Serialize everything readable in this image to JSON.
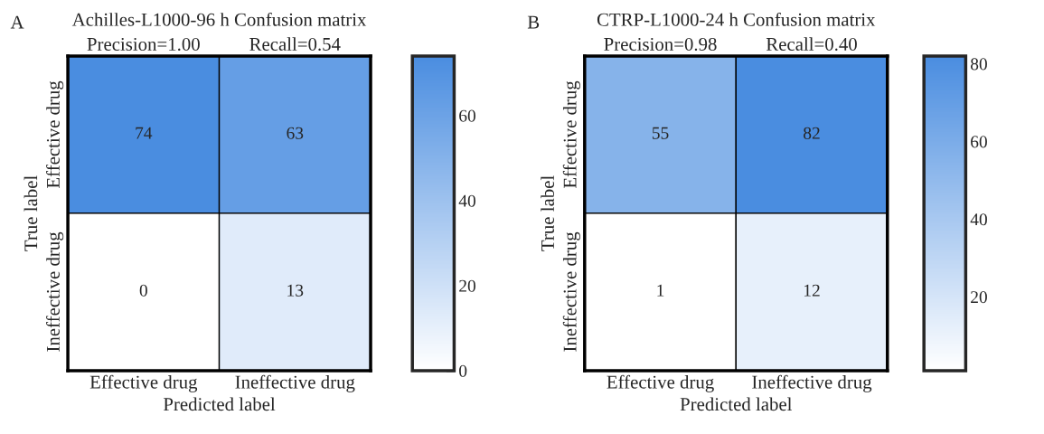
{
  "chart_data": [
    {
      "type": "heatmap",
      "title": "Achilles-L1000-96 h Confusion matrix",
      "xlabel": "Predicted label",
      "ylabel": "True label",
      "annotations": [
        "A",
        "Precision=1.00",
        "Recall=0.54"
      ],
      "categories": [
        "Effective drug",
        "Ineffective drug"
      ],
      "y_categories": [
        "Effective drug",
        "Ineffective drug"
      ],
      "cells": [
        [
          74,
          63
        ],
        [
          0,
          13
        ]
      ],
      "data_labels": true,
      "clim": [
        0,
        74
      ],
      "cticks": [
        0,
        20,
        40,
        60
      ]
    },
    {
      "type": "heatmap",
      "title": "CTRP-L1000-24 h Confusion matrix",
      "xlabel": "Predicted label",
      "ylabel": "True label",
      "annotations": [
        "B",
        "Precision=0.98",
        "Recall=0.40"
      ],
      "categories": [
        "Effective drug",
        "Ineffective drug"
      ],
      "y_categories": [
        "Effective drug",
        "Ineffective drug"
      ],
      "cells": [
        [
          55,
          82
        ],
        [
          1,
          12
        ]
      ],
      "data_labels": true,
      "clim": [
        1,
        82
      ],
      "cticks": [
        20,
        40,
        60,
        80
      ]
    }
  ]
}
